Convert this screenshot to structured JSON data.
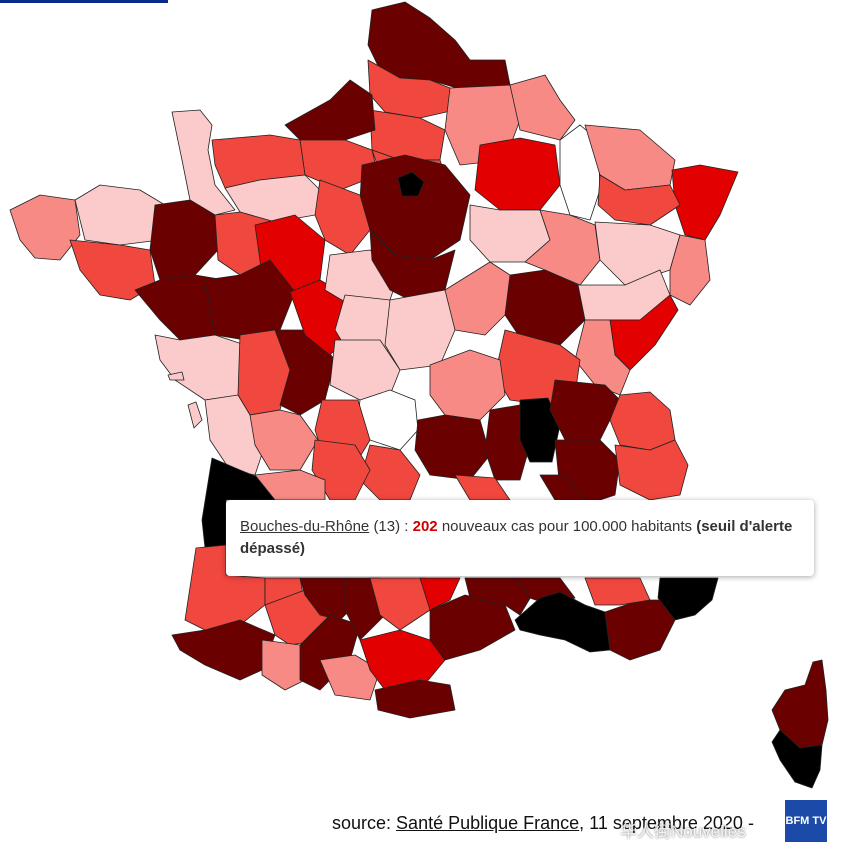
{
  "tooltip": {
    "department": "Bouches-du-Rhône",
    "code": "(13) :",
    "value": "202",
    "text": "nouveaux cas pour 100.000 habitants",
    "alert": "(seuil d'alerte dépassé)"
  },
  "source": {
    "prefix": "source:",
    "link": "Santé Publique France",
    "date": ", 11 septembre 2020 -"
  },
  "watermark": "华人街Nouvelles",
  "logo": "BFM TV",
  "colors": {
    "darkest": "#000000",
    "very_high": "#6b0000",
    "high": "#e30000",
    "medium": "#f0473e",
    "low": "#f88a85",
    "very_low": "#fbcaca",
    "none": "#ffffff",
    "accent": "#0a2a8a"
  }
}
